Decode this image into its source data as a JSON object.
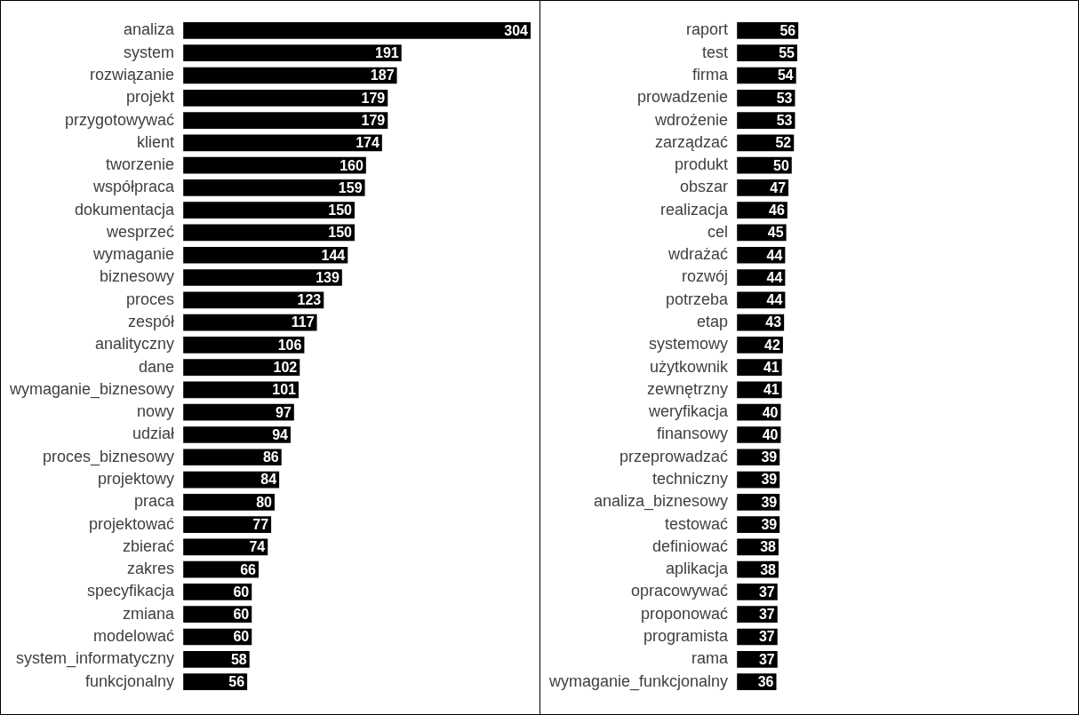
{
  "chart_data": [
    {
      "type": "bar",
      "orientation": "horizontal",
      "data_labels": true,
      "color": "#000000",
      "categories": [
        "analiza",
        "system",
        "rozwiązanie",
        "projekt",
        "przygotowywać",
        "klient",
        "tworzenie",
        "współpraca",
        "dokumentacja",
        "wesprzeć",
        "wymaganie",
        "biznesowy",
        "proces",
        "zespół",
        "analityczny",
        "dane",
        "wymaganie_biznesowy",
        "nowy",
        "udział",
        "proces_biznesowy",
        "projektowy",
        "praca",
        "projektować",
        "zbierać",
        "zakres",
        "specyfikacja",
        "zmiana",
        "modelować",
        "system_informatyczny",
        "funkcjonalny"
      ],
      "values": [
        304,
        191,
        187,
        179,
        179,
        174,
        160,
        159,
        150,
        150,
        144,
        139,
        123,
        117,
        106,
        102,
        101,
        97,
        94,
        86,
        84,
        80,
        77,
        74,
        66,
        60,
        60,
        60,
        58,
        56
      ]
    },
    {
      "type": "bar",
      "orientation": "horizontal",
      "data_labels": true,
      "color": "#000000",
      "categories": [
        "raport",
        "test",
        "firma",
        "prowadzenie",
        "wdrożenie",
        "zarządzać",
        "produkt",
        "obszar",
        "realizacja",
        "cel",
        "wdrażać",
        "rozwój",
        "potrzeba",
        "etap",
        "systemowy",
        "użytkownik",
        "zewnętrzny",
        "weryfikacja",
        "finansowy",
        "przeprowadzać",
        "techniczny",
        "analiza_biznesowy",
        "testować",
        "definiować",
        "aplikacja",
        "opracowywać",
        "proponować",
        "programista",
        "rama",
        "wymaganie_funkcjonalny"
      ],
      "values": [
        56,
        55,
        54,
        53,
        53,
        52,
        50,
        47,
        46,
        45,
        44,
        44,
        44,
        43,
        42,
        41,
        41,
        40,
        40,
        39,
        39,
        39,
        39,
        38,
        38,
        37,
        37,
        37,
        37,
        36
      ]
    }
  ]
}
